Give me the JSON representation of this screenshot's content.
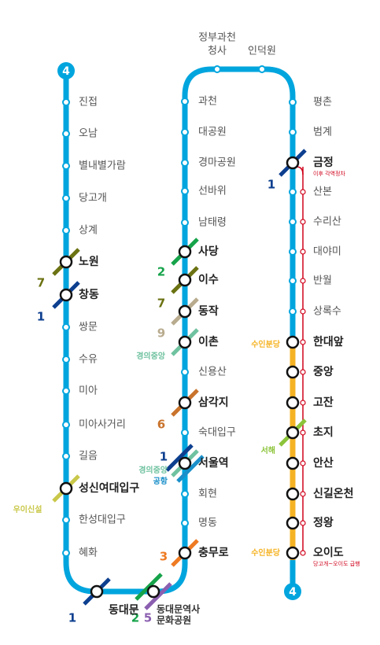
{
  "line_badges": [
    "4",
    "4"
  ],
  "left_stations": [
    "진접",
    "오남",
    "별내별가람",
    "당고개",
    "상계",
    "노원",
    "창동",
    "쌍문",
    "수유",
    "미아",
    "미아사거리",
    "길음",
    "성신여대입구",
    "한성대입구",
    "혜화"
  ],
  "bottom_stations": [
    [
      "동대문"
    ],
    [
      "동대문역사",
      "문화공원"
    ]
  ],
  "middle_stations": [
    "과천",
    "대공원",
    "경마공원",
    "선바위",
    "남태령",
    "사당",
    "이수",
    "동작",
    "이촌",
    "신용산",
    "삼각지",
    "숙대입구",
    "서울역",
    "회현",
    "명동",
    "충무로"
  ],
  "top_stations": [
    [
      "정부과천",
      "청사"
    ],
    [
      "인덕원"
    ]
  ],
  "right_stations": [
    "평촌",
    "범계",
    "금정",
    "산본",
    "수리산",
    "대야미",
    "반월",
    "상록수",
    "한대앞",
    "중앙",
    "고잔",
    "초지",
    "안산",
    "신길온천",
    "정왕",
    "오이도"
  ],
  "notes": [
    "이후 각역정차",
    "당고개~오이도 급행"
  ],
  "branch_labels": [
    "수인분당",
    "수인분당"
  ],
  "transfers": [
    {
      "label": "1",
      "color": "#0d3f8f"
    },
    {
      "label": "7",
      "color": "#6b7212"
    },
    {
      "label": "1",
      "color": "#0d3f8f"
    },
    {
      "label": "우이신설",
      "color": "#c9c84a"
    },
    {
      "label": "1",
      "color": "#0d3f8f"
    },
    {
      "label": "2",
      "color": "#16a34a"
    },
    {
      "label": "5",
      "color": "#8b5fb0"
    },
    {
      "label": "2",
      "color": "#16a34a"
    },
    {
      "label": "7",
      "color": "#6b7212"
    },
    {
      "label": "9",
      "color": "#b8ab8e"
    },
    {
      "label": "경의중앙",
      "color": "#6fc2a0"
    },
    {
      "label": "6",
      "color": "#c9732c"
    },
    {
      "label": "1",
      "color": "#0d3f8f"
    },
    {
      "label": "경의중앙",
      "color": "#6fc2a0"
    },
    {
      "label": "공항",
      "color": "#1a8fc9"
    },
    {
      "label": "3",
      "color": "#ee7a22"
    },
    {
      "label": "서해",
      "color": "#8cc43a"
    }
  ]
}
